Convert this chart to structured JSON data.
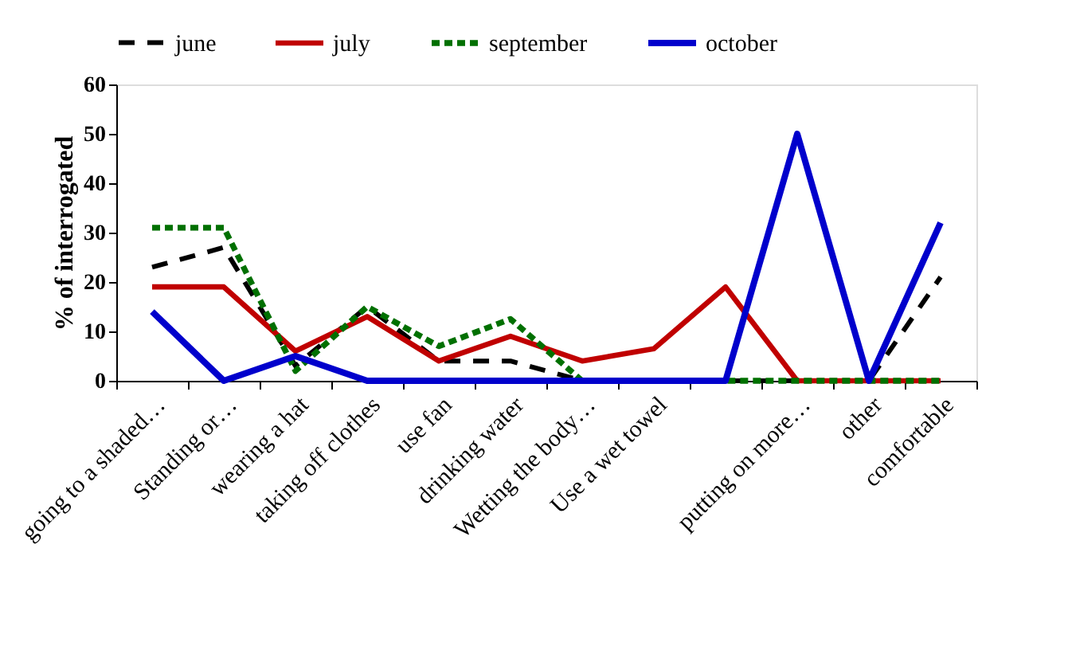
{
  "chart_data": {
    "type": "line",
    "ylabel": "% of interrogated",
    "categories": [
      "going to a shaded…",
      "Standing or…",
      "wearing a hat",
      "taking off clothes",
      "use fan",
      "drinking water",
      "Wetting the body…",
      "Use a wet towel",
      null,
      "putting on more…",
      "other",
      "comfortable"
    ],
    "series": [
      {
        "name": "june",
        "color": "#000000",
        "line_style": "dashed",
        "values": [
          23,
          27,
          3,
          15,
          4,
          4,
          0,
          0,
          0,
          0,
          0,
          21
        ]
      },
      {
        "name": "july",
        "color": "#c00000",
        "line_style": "solid",
        "values": [
          19,
          19,
          6,
          13,
          4,
          9,
          4,
          6.5,
          19,
          0,
          0,
          0
        ]
      },
      {
        "name": "september",
        "color": "#007000",
        "line_style": "dotted",
        "values": [
          31,
          31,
          2,
          15,
          7,
          12.5,
          0,
          0,
          0,
          0,
          0,
          0
        ]
      },
      {
        "name": "october",
        "color": "#0000cc",
        "line_style": "solid",
        "values": [
          14,
          0,
          5,
          0,
          0,
          0,
          0,
          0,
          0,
          50,
          0,
          32
        ]
      }
    ],
    "ylim": [
      0,
      60
    ],
    "yticks": [
      0,
      10,
      20,
      30,
      40,
      50,
      60
    ],
    "grid": false,
    "legend": "top",
    "marker": "none"
  }
}
